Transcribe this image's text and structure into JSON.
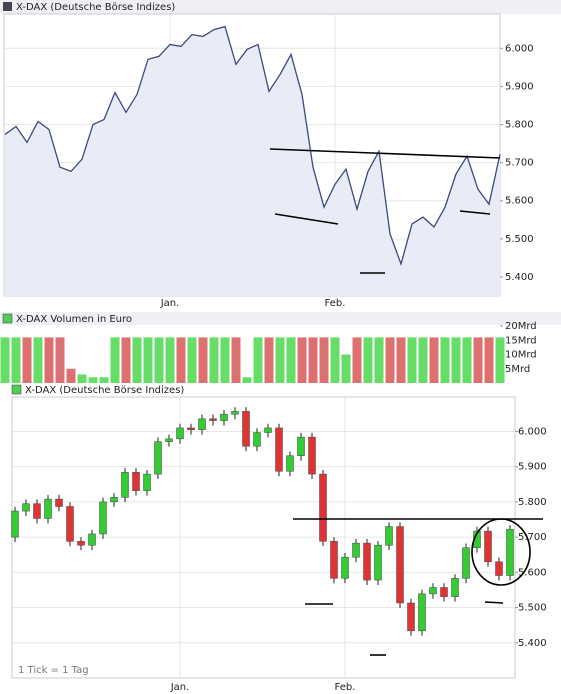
{
  "chart_data": [
    {
      "type": "line",
      "title": "X-DAX (Deutsche Börse Indizes)",
      "color": "#3a4a7a",
      "fill": "#e9ecf7",
      "categories": [
        null,
        null,
        null,
        null,
        null,
        null,
        null,
        null,
        null,
        null,
        null,
        null,
        null,
        null,
        null,
        "Jan.",
        null,
        null,
        null,
        null,
        null,
        null,
        null,
        null,
        null,
        null,
        null,
        null,
        null,
        null,
        "Feb.",
        null,
        null,
        null,
        null,
        null,
        null,
        null,
        null,
        null,
        null,
        null,
        null,
        null,
        null,
        null
      ],
      "values": [
        5774,
        5795,
        5753,
        5808,
        5787,
        5688,
        5677,
        5709,
        5800,
        5813,
        5884,
        5832,
        5879,
        5971,
        5979,
        6010,
        6005,
        6036,
        6031,
        6049,
        6057,
        5958,
        5997,
        6010,
        5887,
        5931,
        5984,
        5879,
        5688,
        5583,
        5643,
        5683,
        5578,
        5677,
        5730,
        5513,
        5434,
        5539,
        5557,
        5531,
        5583,
        5670,
        5717,
        5630,
        5591,
        5722
      ],
      "ylim": [
        5350,
        6090
      ],
      "yticks": [
        {
          "value": 5400,
          "label": "5.400"
        },
        {
          "value": 5500,
          "label": "5.500"
        },
        {
          "value": 5600,
          "label": "5.600"
        },
        {
          "value": 5700,
          "label": "5.700"
        },
        {
          "value": 5800,
          "label": "5.800"
        },
        {
          "value": 5900,
          "label": "5.900"
        },
        {
          "value": 6000,
          "label": "6.000"
        }
      ],
      "grid": true
    },
    {
      "type": "bar",
      "title": "X-DAX Volumen in Euro",
      "up_color": "#66dd66",
      "down_color": "#dd7070",
      "categories": [
        null,
        null,
        null,
        null,
        null,
        null,
        null,
        null,
        null,
        null,
        null,
        null,
        null,
        null,
        null,
        null,
        null,
        null,
        null,
        null,
        null,
        null,
        null,
        null,
        null,
        null,
        null,
        null,
        null,
        null,
        null,
        null,
        null,
        null,
        null,
        null,
        null,
        null,
        null,
        null,
        null,
        null,
        null,
        null,
        null,
        null
      ],
      "values": [
        16,
        16,
        16,
        16,
        16,
        16,
        5,
        3,
        2,
        2,
        16,
        16,
        16,
        16,
        16,
        16,
        16,
        16,
        16,
        16,
        16,
        16,
        2,
        16,
        16,
        16,
        16,
        16,
        16,
        16,
        16,
        10,
        16,
        16,
        16,
        16,
        16,
        16,
        16,
        16,
        16,
        16,
        16,
        16,
        16,
        16
      ],
      "ylim": [
        0,
        20
      ],
      "yticks": [
        {
          "value": 5,
          "label": "5Mrd"
        },
        {
          "value": 10,
          "label": "10Mrd"
        },
        {
          "value": 15,
          "label": "15Mrd"
        },
        {
          "value": 20,
          "label": "20Mrd"
        }
      ]
    },
    {
      "type": "candlestick",
      "title": "X-DAX (Deutsche Börse Indizes)",
      "annotation": "1 Tick = 1 Tag",
      "up_color": "#33cc33",
      "down_color": "#e03333",
      "categories": [
        null,
        null,
        null,
        null,
        null,
        null,
        null,
        null,
        null,
        null,
        null,
        null,
        null,
        null,
        null,
        "Jan.",
        null,
        null,
        null,
        null,
        null,
        null,
        null,
        null,
        null,
        null,
        null,
        null,
        null,
        null,
        "Feb.",
        null,
        null,
        null,
        null,
        null,
        null,
        null,
        null,
        null,
        null,
        null,
        null,
        null,
        null,
        null
      ],
      "open": [
        5700,
        5774,
        5795,
        5753,
        5808,
        5787,
        5688,
        5677,
        5709,
        5800,
        5813,
        5884,
        5832,
        5879,
        5971,
        5979,
        6010,
        6005,
        6036,
        6031,
        6049,
        6057,
        5958,
        5997,
        6010,
        5887,
        5931,
        5984,
        5879,
        5688,
        5583,
        5643,
        5683,
        5578,
        5677,
        5730,
        5513,
        5434,
        5539,
        5557,
        5531,
        5583,
        5670,
        5717,
        5630,
        5591
      ],
      "high": [
        5786,
        5807,
        5807,
        5820,
        5820,
        5799,
        5700,
        5721,
        5812,
        5825,
        5896,
        5896,
        5891,
        5983,
        5991,
        6022,
        6022,
        6048,
        6048,
        6061,
        6069,
        6069,
        6009,
        6022,
        6022,
        5943,
        5996,
        5996,
        5891,
        5700,
        5655,
        5695,
        5695,
        5689,
        5742,
        5742,
        5525,
        5551,
        5569,
        5569,
        5595,
        5682,
        5729,
        5729,
        5642,
        5734
      ],
      "low": [
        5686,
        5760,
        5739,
        5739,
        5773,
        5674,
        5663,
        5663,
        5695,
        5786,
        5799,
        5818,
        5818,
        5865,
        5957,
        5965,
        5991,
        5991,
        6017,
        6017,
        6035,
        5944,
        5944,
        5983,
        5873,
        5873,
        5917,
        5865,
        5674,
        5569,
        5569,
        5629,
        5564,
        5564,
        5663,
        5499,
        5420,
        5420,
        5525,
        5517,
        5517,
        5569,
        5656,
        5616,
        5577,
        5577
      ],
      "close": [
        5774,
        5795,
        5753,
        5808,
        5787,
        5688,
        5677,
        5709,
        5800,
        5813,
        5884,
        5832,
        5879,
        5971,
        5979,
        6010,
        6005,
        6036,
        6031,
        6049,
        6057,
        5958,
        5997,
        6010,
        5887,
        5931,
        5984,
        5879,
        5688,
        5583,
        5643,
        5683,
        5578,
        5677,
        5730,
        5513,
        5434,
        5539,
        5557,
        5531,
        5583,
        5670,
        5717,
        5630,
        5591,
        5722
      ],
      "ylim": [
        5300,
        6095
      ],
      "yticks": [
        {
          "value": 5400,
          "label": "5.400"
        },
        {
          "value": 5500,
          "label": "5.500"
        },
        {
          "value": 5600,
          "label": "5.600"
        },
        {
          "value": 5700,
          "label": "5.700"
        },
        {
          "value": 5800,
          "label": "5.800"
        },
        {
          "value": 5900,
          "label": "5.900"
        },
        {
          "value": 6000,
          "label": "6.000"
        }
      ],
      "grid": true
    }
  ]
}
